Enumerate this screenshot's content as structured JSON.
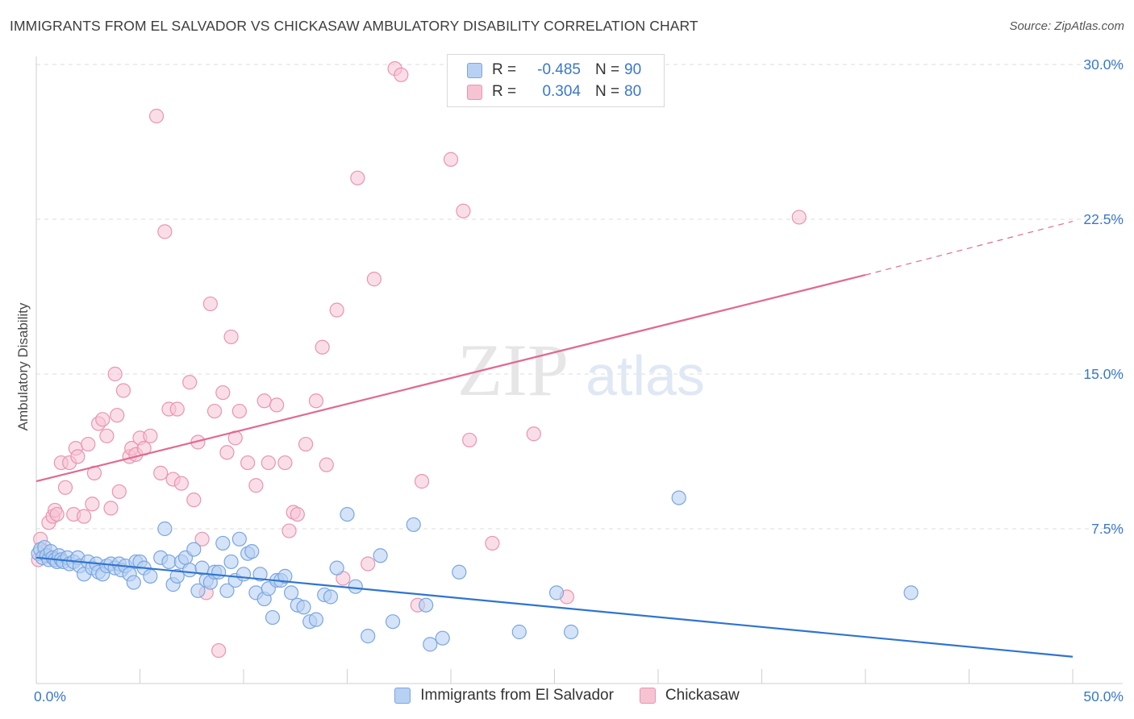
{
  "title": "IMMIGRANTS FROM EL SALVADOR VS CHICKASAW AMBULATORY DISABILITY CORRELATION CHART",
  "source": "Source: ZipAtlas.com",
  "watermark": {
    "zip": "ZIP",
    "atlas": "atlas"
  },
  "colors": {
    "blue_fill": "#b8d1f2",
    "blue_stroke": "#7aa6e0",
    "blue_line": "#2f74d0",
    "pink_fill": "#f6c3d3",
    "pink_stroke": "#ea94b0",
    "pink_line": "#e06a92",
    "tick_text": "#3a78c8",
    "grid": "#dcdcdc"
  },
  "legend": {
    "rows": [
      {
        "r_label": "R =",
        "r_value": "-0.485",
        "n_label": "N =",
        "n_value": "90"
      },
      {
        "r_label": "R =",
        "r_value": "0.304",
        "n_label": "N =",
        "n_value": "80"
      }
    ]
  },
  "bottom_legend": [
    "Immigrants from El Salvador",
    "Chickasaw"
  ],
  "chart_data": {
    "type": "scatter",
    "title": "IMMIGRANTS FROM EL SALVADOR VS CHICKASAW AMBULATORY DISABILITY CORRELATION CHART",
    "xlabel": "",
    "ylabel": "Ambulatory Disability",
    "xlim": [
      0,
      50
    ],
    "ylim": [
      0,
      30
    ],
    "x_tick_labels": [
      "0.0%",
      "50.0%"
    ],
    "y_ticks": [
      7.5,
      15.0,
      22.5,
      30.0
    ],
    "y_tick_labels": [
      "7.5%",
      "15.0%",
      "22.5%",
      "30.0%"
    ],
    "grid": true,
    "legend_placement": "top-center",
    "series": [
      {
        "name": "Immigrants from El Salvador",
        "color": "#b8d1f2",
        "r": -0.485,
        "n": 90,
        "trend": {
          "x0": 0,
          "y0": 6.1,
          "x1": 50,
          "y1": 1.3
        },
        "points": [
          [
            0.1,
            6.3
          ],
          [
            0.2,
            6.5
          ],
          [
            0.3,
            6.1
          ],
          [
            0.4,
            6.6
          ],
          [
            0.5,
            6.2
          ],
          [
            0.6,
            6.0
          ],
          [
            0.7,
            6.4
          ],
          [
            0.8,
            6.1
          ],
          [
            0.9,
            6.0
          ],
          [
            1.0,
            5.9
          ],
          [
            1.1,
            6.2
          ],
          [
            1.2,
            6.0
          ],
          [
            1.3,
            5.9
          ],
          [
            1.5,
            6.1
          ],
          [
            1.6,
            5.8
          ],
          [
            1.8,
            5.9
          ],
          [
            2.0,
            6.1
          ],
          [
            2.1,
            5.7
          ],
          [
            2.3,
            5.3
          ],
          [
            2.5,
            5.9
          ],
          [
            2.7,
            5.6
          ],
          [
            2.9,
            5.8
          ],
          [
            3.0,
            5.4
          ],
          [
            3.2,
            5.3
          ],
          [
            3.4,
            5.7
          ],
          [
            3.6,
            5.8
          ],
          [
            3.8,
            5.6
          ],
          [
            4.0,
            5.8
          ],
          [
            4.1,
            5.5
          ],
          [
            4.3,
            5.7
          ],
          [
            4.5,
            5.3
          ],
          [
            4.7,
            4.9
          ],
          [
            4.8,
            5.9
          ],
          [
            5.0,
            5.9
          ],
          [
            5.2,
            5.6
          ],
          [
            5.5,
            5.2
          ],
          [
            6.0,
            6.1
          ],
          [
            6.2,
            7.5
          ],
          [
            6.4,
            5.9
          ],
          [
            6.6,
            4.8
          ],
          [
            6.8,
            5.2
          ],
          [
            7.0,
            5.9
          ],
          [
            7.2,
            6.1
          ],
          [
            7.4,
            5.5
          ],
          [
            7.6,
            6.5
          ],
          [
            7.8,
            4.5
          ],
          [
            8.0,
            5.6
          ],
          [
            8.2,
            5.0
          ],
          [
            8.4,
            4.9
          ],
          [
            8.6,
            5.4
          ],
          [
            8.8,
            5.4
          ],
          [
            9.0,
            6.8
          ],
          [
            9.2,
            4.5
          ],
          [
            9.4,
            5.9
          ],
          [
            9.6,
            5.0
          ],
          [
            9.8,
            7.0
          ],
          [
            10.0,
            5.3
          ],
          [
            10.2,
            6.3
          ],
          [
            10.4,
            6.4
          ],
          [
            10.6,
            4.4
          ],
          [
            10.8,
            5.3
          ],
          [
            11.0,
            4.1
          ],
          [
            11.2,
            4.6
          ],
          [
            11.4,
            3.2
          ],
          [
            11.6,
            5.0
          ],
          [
            11.8,
            5.0
          ],
          [
            12.0,
            5.2
          ],
          [
            12.3,
            4.4
          ],
          [
            12.6,
            3.8
          ],
          [
            12.9,
            3.7
          ],
          [
            13.2,
            3.0
          ],
          [
            13.5,
            3.1
          ],
          [
            13.9,
            4.3
          ],
          [
            14.2,
            4.2
          ],
          [
            14.5,
            5.6
          ],
          [
            15.0,
            8.2
          ],
          [
            15.4,
            4.7
          ],
          [
            16.0,
            2.3
          ],
          [
            16.6,
            6.2
          ],
          [
            17.2,
            3.0
          ],
          [
            18.2,
            7.7
          ],
          [
            18.8,
            3.8
          ],
          [
            19.0,
            1.9
          ],
          [
            19.6,
            2.2
          ],
          [
            20.4,
            5.4
          ],
          [
            23.3,
            2.5
          ],
          [
            25.1,
            4.4
          ],
          [
            25.8,
            2.5
          ],
          [
            31.0,
            9.0
          ],
          [
            42.2,
            4.4
          ]
        ]
      },
      {
        "name": "Chickasaw",
        "color": "#f6c3d3",
        "r": 0.304,
        "n": 80,
        "trend": {
          "x0": 0,
          "y0": 9.8,
          "x1": 40,
          "y1": 19.8,
          "dashed_to": {
            "x": 50,
            "y": 22.4
          }
        },
        "points": [
          [
            0.1,
            6.0
          ],
          [
            0.2,
            7.0
          ],
          [
            0.4,
            6.4
          ],
          [
            0.6,
            7.8
          ],
          [
            0.8,
            8.1
          ],
          [
            0.9,
            8.4
          ],
          [
            1.0,
            8.2
          ],
          [
            1.2,
            10.7
          ],
          [
            1.4,
            9.5
          ],
          [
            1.6,
            10.7
          ],
          [
            1.8,
            8.2
          ],
          [
            1.9,
            11.4
          ],
          [
            2.0,
            11.0
          ],
          [
            2.3,
            8.1
          ],
          [
            2.5,
            11.6
          ],
          [
            2.7,
            8.7
          ],
          [
            2.8,
            10.2
          ],
          [
            3.0,
            12.6
          ],
          [
            3.2,
            12.8
          ],
          [
            3.4,
            12.0
          ],
          [
            3.6,
            8.5
          ],
          [
            3.8,
            15.0
          ],
          [
            3.9,
            13.0
          ],
          [
            4.0,
            9.3
          ],
          [
            4.2,
            14.2
          ],
          [
            4.5,
            11.0
          ],
          [
            4.6,
            11.4
          ],
          [
            4.8,
            11.1
          ],
          [
            5.0,
            11.9
          ],
          [
            5.2,
            11.4
          ],
          [
            5.5,
            12.0
          ],
          [
            5.8,
            27.5
          ],
          [
            6.0,
            10.2
          ],
          [
            6.2,
            21.9
          ],
          [
            6.4,
            13.3
          ],
          [
            6.6,
            9.9
          ],
          [
            6.8,
            13.3
          ],
          [
            7.0,
            9.7
          ],
          [
            7.4,
            14.6
          ],
          [
            7.6,
            8.9
          ],
          [
            7.8,
            11.7
          ],
          [
            8.0,
            7.0
          ],
          [
            8.2,
            4.4
          ],
          [
            8.4,
            18.4
          ],
          [
            8.6,
            13.2
          ],
          [
            8.8,
            1.6
          ],
          [
            9.0,
            14.1
          ],
          [
            9.2,
            11.2
          ],
          [
            9.4,
            16.8
          ],
          [
            9.6,
            11.9
          ],
          [
            9.8,
            13.2
          ],
          [
            10.2,
            10.7
          ],
          [
            10.6,
            9.6
          ],
          [
            11.0,
            13.7
          ],
          [
            11.2,
            10.7
          ],
          [
            11.6,
            13.5
          ],
          [
            12.0,
            10.7
          ],
          [
            12.2,
            7.4
          ],
          [
            12.4,
            8.3
          ],
          [
            12.6,
            8.2
          ],
          [
            13.0,
            11.6
          ],
          [
            13.5,
            13.7
          ],
          [
            13.8,
            16.3
          ],
          [
            14.0,
            10.6
          ],
          [
            14.5,
            18.1
          ],
          [
            14.8,
            5.1
          ],
          [
            15.5,
            24.5
          ],
          [
            16.0,
            5.8
          ],
          [
            16.3,
            19.6
          ],
          [
            17.3,
            29.8
          ],
          [
            17.6,
            29.5
          ],
          [
            18.4,
            3.8
          ],
          [
            18.6,
            9.8
          ],
          [
            20.0,
            25.4
          ],
          [
            20.6,
            22.9
          ],
          [
            20.9,
            11.8
          ],
          [
            22.0,
            6.8
          ],
          [
            24.0,
            12.1
          ],
          [
            25.6,
            4.2
          ],
          [
            36.8,
            22.6
          ]
        ]
      }
    ]
  }
}
